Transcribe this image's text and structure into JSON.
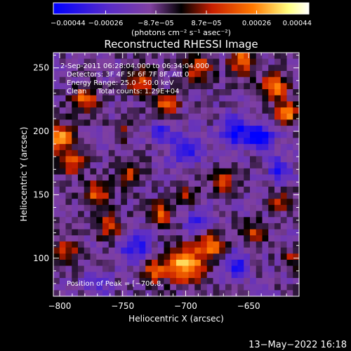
{
  "chart_data": {
    "type": "heatmap",
    "title": "Reconstructed RHESSI Image",
    "xlabel": "Heliocentric X (arcsec)",
    "ylabel": "Heliocentric Y (arcsec)",
    "xlim": [
      -805,
      -610
    ],
    "ylim": [
      70,
      262
    ],
    "xticks": [
      -800,
      -750,
      -700,
      -650
    ],
    "xtick_labels": [
      "−800",
      "−750",
      "−700",
      "−650"
    ],
    "yticks": [
      100,
      150,
      200,
      250
    ],
    "ytick_labels": [
      "100",
      "150",
      "200",
      "250"
    ],
    "colorbar": {
      "min": -0.00044,
      "max": 0.00044,
      "ticks": [
        -0.00044,
        -0.00026,
        -8.7e-05,
        8.7e-05,
        0.00026,
        0.00044
      ],
      "tick_labels": [
        "−0.00044",
        "−0.00026",
        "−8.7e−05",
        "8.7e−05",
        "0.00026",
        "0.00044"
      ],
      "units_label": "(photons cm⁻² s⁻¹ asec⁻²)",
      "colors": [
        "#0000ff",
        "#5a2cc8",
        "#8040a0",
        "#000000",
        "#c81e00",
        "#ff7800",
        "#ffff80",
        "#ffffff"
      ]
    },
    "annotations": {
      "time_range": "2-Sep-2011 06:28:04.000 to 06:34:04.000",
      "detectors": "Detectors: 3F 4F 5F 6F 7F 8F, Att 0",
      "energy": "Energy Range: 25.0 - 50.0 keV",
      "clean": "Clean     Total counts: 1.29E+04",
      "peak": "Position of Peak = [−706.8,"
    },
    "hotspots": [
      {
        "x": -700,
        "y": 95,
        "v": 1.0,
        "r": 14
      },
      {
        "x": -680,
        "y": 110,
        "v": 0.75,
        "r": 10
      },
      {
        "x": -725,
        "y": 90,
        "v": 0.7,
        "r": 9
      },
      {
        "x": -800,
        "y": 195,
        "v": 0.95,
        "r": 10
      },
      {
        "x": -790,
        "y": 175,
        "v": 0.6,
        "r": 10
      },
      {
        "x": -780,
        "y": 225,
        "v": 0.75,
        "r": 10
      },
      {
        "x": -735,
        "y": 240,
        "v": 0.7,
        "r": 10
      },
      {
        "x": -715,
        "y": 220,
        "v": 0.65,
        "r": 9
      },
      {
        "x": -690,
        "y": 250,
        "v": 0.7,
        "r": 10
      },
      {
        "x": -655,
        "y": 255,
        "v": 0.75,
        "r": 10
      },
      {
        "x": -630,
        "y": 235,
        "v": 0.8,
        "r": 10
      },
      {
        "x": -620,
        "y": 215,
        "v": 0.9,
        "r": 8
      },
      {
        "x": -770,
        "y": 150,
        "v": 0.65,
        "r": 11
      },
      {
        "x": -745,
        "y": 165,
        "v": 0.55,
        "r": 9
      },
      {
        "x": -760,
        "y": 125,
        "v": 0.6,
        "r": 10
      },
      {
        "x": -795,
        "y": 105,
        "v": 0.5,
        "r": 10
      },
      {
        "x": -720,
        "y": 135,
        "v": 0.6,
        "r": 9
      },
      {
        "x": -700,
        "y": 150,
        "v": 0.5,
        "r": 8
      },
      {
        "x": -670,
        "y": 160,
        "v": 0.55,
        "r": 9
      },
      {
        "x": -645,
        "y": 120,
        "v": 0.5,
        "r": 9
      },
      {
        "x": -625,
        "y": 145,
        "v": 0.45,
        "r": 8
      },
      {
        "x": -615,
        "y": 100,
        "v": 0.4,
        "r": 8
      },
      {
        "x": -750,
        "y": 200,
        "v": 0.35,
        "r": 8
      },
      {
        "x": -660,
        "y": 200,
        "v": -0.7,
        "r": 12
      },
      {
        "x": -640,
        "y": 195,
        "v": -0.95,
        "r": 9
      },
      {
        "x": -700,
        "y": 185,
        "v": -0.6,
        "r": 12
      },
      {
        "x": -740,
        "y": 110,
        "v": -0.6,
        "r": 12
      },
      {
        "x": -690,
        "y": 130,
        "v": -0.5,
        "r": 10
      },
      {
        "x": -660,
        "y": 95,
        "v": -0.55,
        "r": 10
      },
      {
        "x": -625,
        "y": 170,
        "v": -0.55,
        "r": 9
      },
      {
        "x": -720,
        "y": 200,
        "v": -0.45,
        "r": 9
      },
      {
        "x": -770,
        "y": 80,
        "v": -0.4,
        "r": 10
      }
    ]
  },
  "footer": {
    "timestamp": "13−May−2022 16:18"
  }
}
